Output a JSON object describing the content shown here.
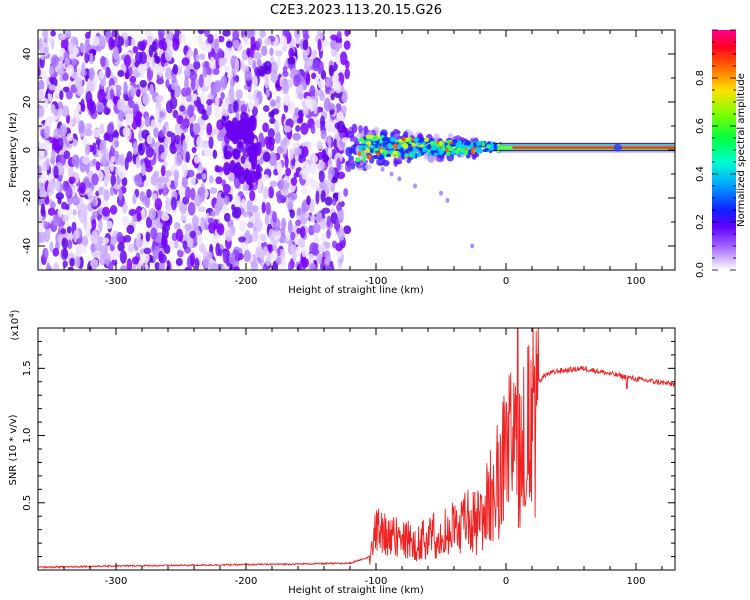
{
  "title": "C2E3.2023.113.20.15.G26",
  "colors": {
    "snr_line": "#ee2222",
    "noise": "#8a2be2",
    "colormap": [
      "#e8e0ff",
      "#b48cff",
      "#8000ff",
      "#2020ff",
      "#00c0ff",
      "#00ff80",
      "#80ff00",
      "#ffff00",
      "#ff8000",
      "#ff0000",
      "#ff0090"
    ]
  },
  "chart_data": [
    {
      "type": "heatmap",
      "xlabel": "Height of straight line (km)",
      "ylabel": "Frequency (Hz)",
      "xlim": [
        -360,
        130
      ],
      "ylim": [
        -50,
        50
      ],
      "xticks": [
        -300,
        -200,
        -100,
        0,
        100
      ],
      "xtick_labels": [
        "-300",
        "-200",
        "-100",
        "0",
        "100"
      ],
      "yticks": [
        -40,
        -20,
        0,
        20,
        40
      ],
      "ytick_labels": [
        "-40",
        "-20",
        "0",
        "20",
        "40"
      ],
      "colorbar": {
        "label": "Normalized spectral amplitude",
        "range": [
          0,
          1
        ],
        "ticks": [
          0.0,
          0.2,
          0.4,
          0.6,
          0.8
        ],
        "tick_labels": [
          "0.0",
          "0.2",
          "0.4",
          "0.6",
          "0.8"
        ]
      },
      "regions": {
        "noise_x_range": [
          -360,
          -122
        ],
        "signal_onset_km": -122,
        "signal_center_hz": 1
      }
    },
    {
      "type": "line",
      "xlabel": "Height of straight line (km)",
      "ylabel": "SNR (10 * v/v)",
      "y_scale_label": "(x10",
      "y_scale_exp": "4",
      "xlim": [
        -360,
        130
      ],
      "ylim": [
        0,
        1.8
      ],
      "xticks": [
        -300,
        -200,
        -100,
        0,
        100
      ],
      "xtick_labels": [
        "-300",
        "-200",
        "-100",
        "0",
        "100"
      ],
      "yticks": [
        0.5,
        1.0,
        1.5
      ],
      "ytick_labels": [
        "0.5",
        "1.0",
        "1.5"
      ],
      "series": [
        {
          "x": [
            -360,
            -300,
            -200,
            -120,
            -105,
            -100,
            -90,
            -80,
            -70,
            -60,
            -50,
            -40,
            -30,
            -20,
            -10,
            0,
            5,
            10,
            20,
            30,
            40,
            60,
            80,
            100,
            130
          ],
          "y": [
            0.02,
            0.03,
            0.04,
            0.05,
            0.1,
            0.35,
            0.3,
            0.3,
            0.25,
            0.3,
            0.35,
            0.4,
            0.45,
            0.45,
            0.75,
            1.05,
            1.15,
            1.2,
            1.35,
            1.45,
            1.48,
            1.5,
            1.46,
            1.42,
            1.38
          ]
        }
      ]
    }
  ]
}
